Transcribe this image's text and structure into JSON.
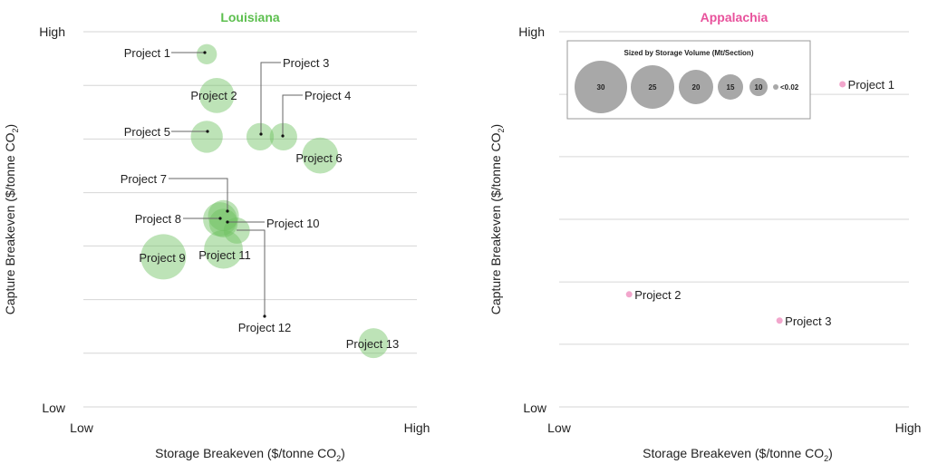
{
  "chart_data": [
    {
      "type": "scatter",
      "title": "Louisiana",
      "title_color": "#5cbf4e",
      "xlabel": "Storage Breakeven ($/tonne CO",
      "xlabel_sub": "2",
      "xlabel_end": ")",
      "ylabel": "Capture Breakeven ($/tonne CO",
      "ylabel_sub": "2",
      "ylabel_end": ")",
      "x_tick_labels": [
        "Low",
        "High"
      ],
      "y_tick_labels": [
        "Low",
        "High"
      ],
      "xlim": [
        0,
        1
      ],
      "ylim": [
        0,
        1
      ],
      "grid": true,
      "grid_lines_y": [
        0,
        0.143,
        0.286,
        0.429,
        0.571,
        0.714,
        0.857,
        1
      ],
      "point_color": "#6cc25f",
      "points": [
        {
          "label": "Project 1",
          "x": 0.37,
          "y": 0.94,
          "size": 6
        },
        {
          "label": "Project 2",
          "x": 0.4,
          "y": 0.83,
          "size": 18
        },
        {
          "label": "Project 3",
          "x": 0.53,
          "y": 0.72,
          "size": 11
        },
        {
          "label": "Project 4",
          "x": 0.6,
          "y": 0.72,
          "size": 11
        },
        {
          "label": "Project 5",
          "x": 0.37,
          "y": 0.72,
          "size": 15
        },
        {
          "label": "Project 6",
          "x": 0.71,
          "y": 0.67,
          "size": 19
        },
        {
          "label": "Project 7",
          "x": 0.42,
          "y": 0.51,
          "size": 14
        },
        {
          "label": "Project 8",
          "x": 0.41,
          "y": 0.5,
          "size": 17
        },
        {
          "label": "Project 9",
          "x": 0.24,
          "y": 0.4,
          "size": 30
        },
        {
          "label": "Project 10",
          "x": 0.42,
          "y": 0.49,
          "size": 12
        },
        {
          "label": "Project 11",
          "x": 0.42,
          "y": 0.42,
          "size": 22
        },
        {
          "label": "Project 12",
          "x": 0.46,
          "y": 0.47,
          "size": 10
        },
        {
          "label": "Project 13",
          "x": 0.87,
          "y": 0.17,
          "size": 13
        }
      ]
    },
    {
      "type": "scatter",
      "title": "Appalachia",
      "title_color": "#e8529c",
      "xlabel": "Storage Breakeven ($/tonne CO",
      "xlabel_sub": "2",
      "xlabel_end": ")",
      "ylabel": "Capture Breakeven ($/tonne CO",
      "ylabel_sub": "2",
      "ylabel_end": ")",
      "x_tick_labels": [
        "Low",
        "High"
      ],
      "y_tick_labels": [
        "Low",
        "High"
      ],
      "xlim": [
        0,
        1
      ],
      "ylim": [
        0,
        1
      ],
      "grid": true,
      "grid_lines_y": [
        0,
        0.167,
        0.333,
        0.5,
        0.667,
        0.833,
        1
      ],
      "point_color": "#f2a6cc",
      "points": [
        {
          "label": "Project 1",
          "x": 0.81,
          "y": 0.86,
          "size": 0.02
        },
        {
          "label": "Project 2",
          "x": 0.2,
          "y": 0.3,
          "size": 0.02
        },
        {
          "label": "Project 3",
          "x": 0.63,
          "y": 0.23,
          "size": 0.02
        }
      ]
    }
  ],
  "legend": {
    "title": "Sized by Storage Volume (Mt/Section)",
    "placement": "top-left of Appalachia panel",
    "color": "#a8a8a8",
    "items": [
      "30",
      "25",
      "20",
      "15",
      "10",
      "<0.02"
    ]
  }
}
